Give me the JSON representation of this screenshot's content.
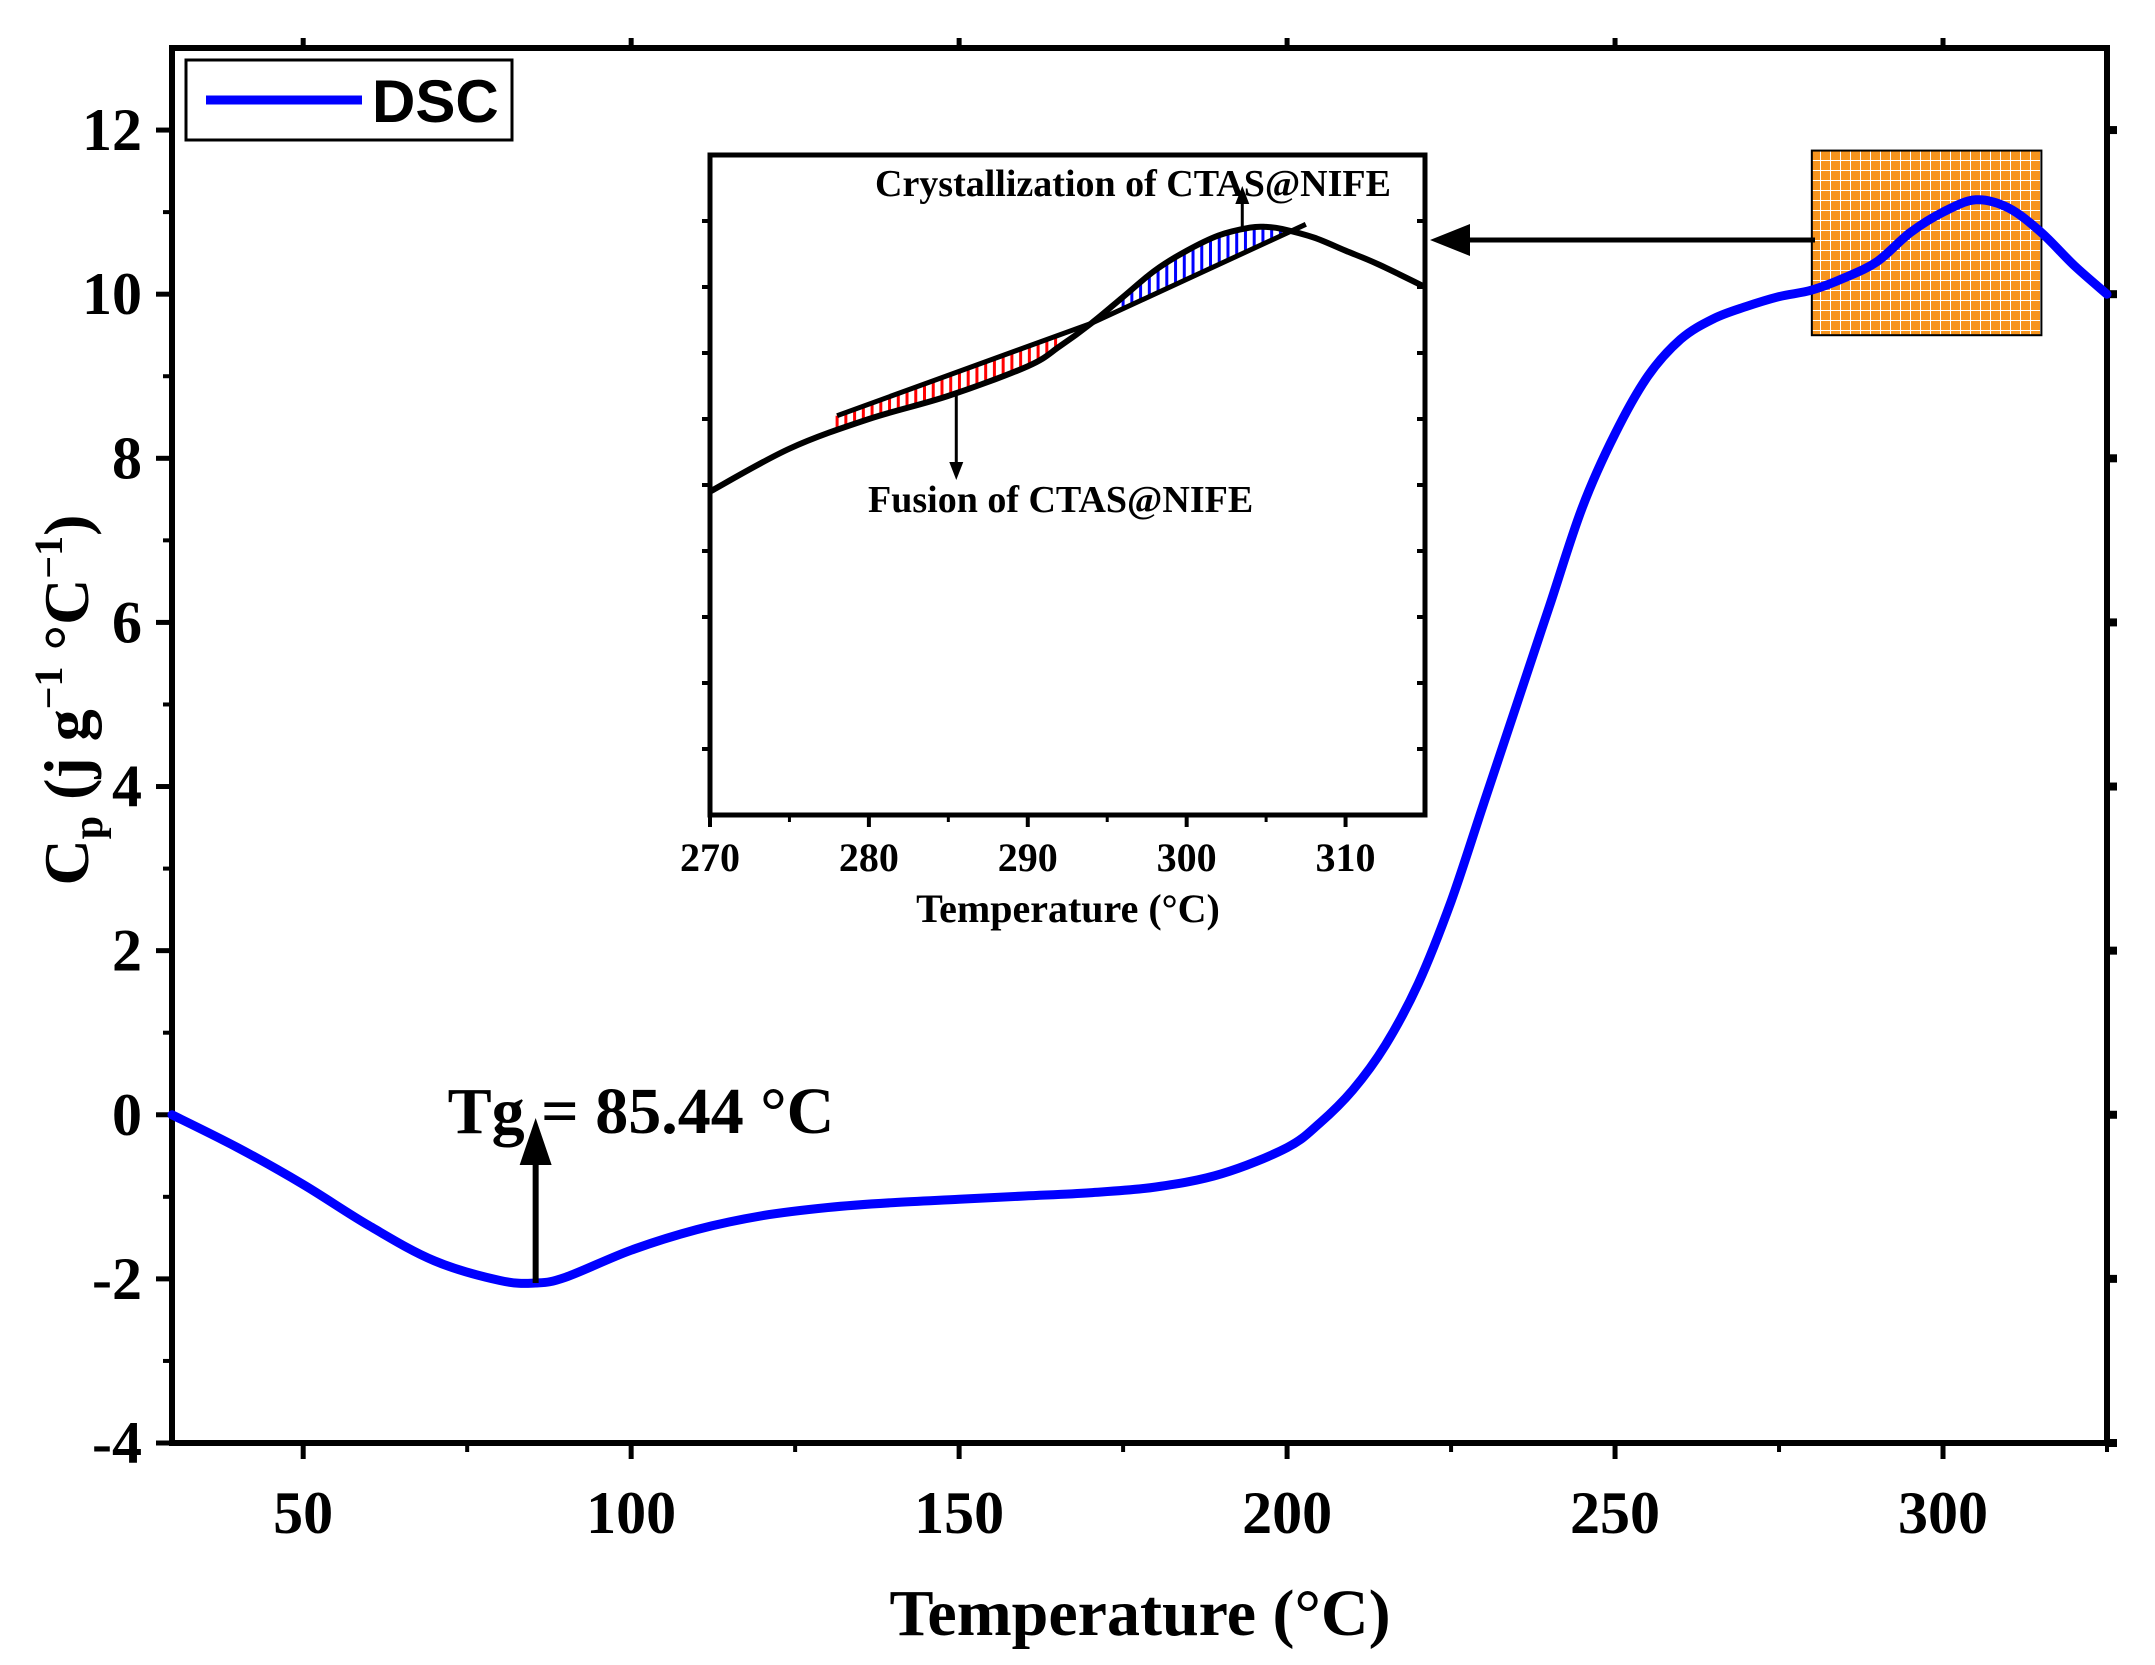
{
  "chart_data": {
    "type": "line",
    "main": {
      "xlabel": "Temperature (°C)",
      "ylabel_main": "C",
      "ylabel_sub": "p",
      "ylabel_units_pre": " (j g",
      "ylabel_exp1": "−1",
      "ylabel_mid": " °C",
      "ylabel_exp2": "−1",
      "ylabel_close": ")",
      "xlim": [
        30,
        325
      ],
      "ylim": [
        -4,
        13
      ],
      "xticks": [
        50,
        100,
        150,
        200,
        250,
        300
      ],
      "xtick_labels": [
        "50",
        "100",
        "150",
        "200",
        "250",
        "300"
      ],
      "yticks": [
        -4,
        -2,
        0,
        2,
        4,
        6,
        8,
        10,
        12
      ],
      "ytick_labels": [
        "-4",
        "-2",
        "0",
        "2",
        "4",
        "6",
        "8",
        "10",
        "12"
      ],
      "series": [
        {
          "name": "DSC",
          "color": "#0000ff",
          "x": [
            30,
            40,
            50,
            60,
            70,
            80,
            85.44,
            90,
            100,
            110,
            120,
            130,
            140,
            150,
            160,
            170,
            180,
            190,
            200,
            205,
            210,
            215,
            220,
            225,
            230,
            235,
            240,
            245,
            250,
            255,
            260,
            265,
            270,
            275,
            280,
            285,
            290,
            295,
            300,
            305,
            310,
            315,
            320,
            325
          ],
          "y": [
            0,
            -0.4,
            -0.85,
            -1.35,
            -1.78,
            -2.02,
            -2.05,
            -1.98,
            -1.65,
            -1.4,
            -1.23,
            -1.13,
            -1.07,
            -1.03,
            -0.99,
            -0.95,
            -0.88,
            -0.72,
            -0.4,
            -0.1,
            0.3,
            0.85,
            1.6,
            2.6,
            3.8,
            5.0,
            6.2,
            7.4,
            8.3,
            9.0,
            9.45,
            9.7,
            9.85,
            9.97,
            10.05,
            10.2,
            10.4,
            10.75,
            11.0,
            11.15,
            11.05,
            10.75,
            10.35,
            10.0
          ]
        }
      ],
      "annotation": "Tg = 85.44 °C",
      "annotation_x": 85.44,
      "annotation_y": -2.05,
      "legend": {
        "label": "DSC",
        "position": "top-left"
      },
      "zoom_box_xrange": [
        280,
        315
      ],
      "zoom_box_yrange": [
        9.5,
        11.75
      ]
    },
    "inset": {
      "xlabel": "Temperature (°C)",
      "xlim": [
        270,
        315
      ],
      "ylim": [
        0,
        10
      ],
      "xticks": [
        270,
        280,
        290,
        300,
        310
      ],
      "xtick_labels": [
        "270",
        "280",
        "290",
        "300",
        "310"
      ],
      "series": [
        {
          "name": "curve",
          "color": "#000000",
          "x": [
            270,
            275,
            280,
            285,
            290,
            292,
            294,
            296,
            298,
            300,
            302,
            304,
            305,
            306,
            308,
            310,
            312,
            315
          ],
          "y": [
            4.9,
            5.55,
            6.0,
            6.35,
            6.8,
            7.1,
            7.45,
            7.85,
            8.25,
            8.55,
            8.78,
            8.9,
            8.91,
            8.88,
            8.75,
            8.55,
            8.35,
            8.0
          ]
        },
        {
          "name": "baseline",
          "color": "#000000",
          "x": [
            278,
            294,
            307.5
          ],
          "y": [
            6.05,
            7.45,
            8.95
          ]
        }
      ],
      "fusion_range": [
        278,
        292
      ],
      "fusion_color": "#ff0000",
      "crystallization_range": [
        296,
        306
      ],
      "crystallization_color": "#0000ff",
      "label_crystallization": "Crystallization of CTAS@NIFE",
      "label_fusion": "Fusion of CTAS@NIFE"
    }
  }
}
